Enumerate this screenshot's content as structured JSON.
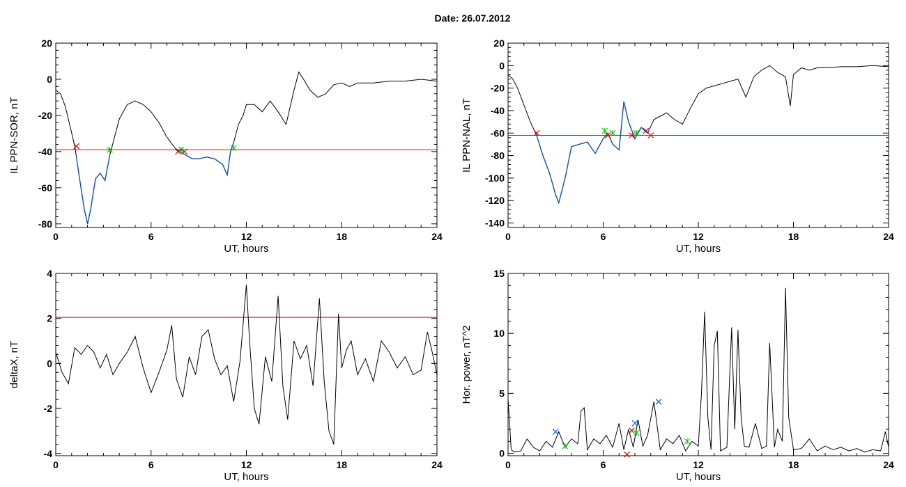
{
  "page": {
    "title": "Date:  26.07.2012"
  },
  "colors": {
    "line": "#000000",
    "storm_segment": "#1060c8",
    "threshold": "#e00000",
    "mark_start": "#e00000",
    "mark_end": "#00c000",
    "mark_peak": "#1060e0",
    "frame": "#000000"
  },
  "chart_data": [
    {
      "type": "line",
      "ylabel": "IL PPN-SOR, nT",
      "xlabel": "UT, hours",
      "xlim": [
        0,
        24
      ],
      "ylim": [
        -82,
        20
      ],
      "xticks": [
        0,
        6,
        12,
        18,
        24
      ],
      "xtick_labels": [
        "0",
        "6",
        "12",
        "18",
        "24"
      ],
      "yticks": [
        -80,
        -60,
        -40,
        -20,
        0,
        20
      ],
      "ytick_labels": [
        "-80",
        "-60",
        "-40",
        "-20",
        "0",
        "20"
      ],
      "threshold": -39,
      "x": [
        0,
        0.3,
        0.6,
        0.9,
        1.2,
        1.5,
        1.8,
        2.0,
        2.2,
        2.5,
        2.8,
        3.1,
        3.4,
        3.7,
        4.0,
        4.5,
        5.0,
        5.5,
        6.0,
        6.5,
        7.0,
        7.5,
        7.8,
        8.2,
        8.6,
        9.0,
        9.5,
        10.0,
        10.5,
        10.8,
        11.0,
        11.2,
        11.5,
        11.8,
        12.0,
        12.5,
        13.0,
        13.5,
        14.0,
        14.5,
        15.0,
        15.3,
        15.6,
        16.0,
        16.5,
        17.0,
        17.5,
        18.0,
        18.5,
        19.0,
        20.0,
        21.0,
        22.0,
        23.0,
        24.0
      ],
      "values": [
        -6,
        -8,
        -15,
        -26,
        -37,
        -55,
        -72,
        -80,
        -72,
        -55,
        -52,
        -56,
        -42,
        -32,
        -22,
        -14,
        -12,
        -14,
        -18,
        -24,
        -32,
        -38,
        -40,
        -42,
        -44,
        -44,
        -43,
        -44,
        -47,
        -53,
        -40,
        -35,
        -25,
        -20,
        -14,
        -14,
        -18,
        -12,
        -18,
        -25,
        -6,
        4,
        0,
        -6,
        -10,
        -8,
        -3,
        -2,
        -4,
        -2,
        -2,
        -1,
        -1,
        0,
        -1
      ],
      "storm_segments": [
        [
          1.3,
          3.4
        ],
        [
          7.7,
          11.2
        ]
      ],
      "markers": [
        {
          "x": 1.3,
          "y": -37,
          "kind": "start"
        },
        {
          "x": 3.4,
          "y": -39,
          "kind": "end"
        },
        {
          "x": 7.7,
          "y": -40,
          "kind": "start"
        },
        {
          "x": 7.9,
          "y": -39,
          "kind": "end"
        },
        {
          "x": 8.1,
          "y": -40,
          "kind": "start"
        },
        {
          "x": 11.2,
          "y": -38,
          "kind": "end"
        }
      ]
    },
    {
      "type": "line",
      "ylabel": "IL PPN-NAL, nT",
      "xlabel": "UT, hours",
      "xlim": [
        0,
        24
      ],
      "ylim": [
        -144,
        20
      ],
      "xticks": [
        0,
        6,
        12,
        18,
        24
      ],
      "xtick_labels": [
        "0",
        "6",
        "12",
        "18",
        "24"
      ],
      "yticks": [
        -140,
        -120,
        -100,
        -80,
        -60,
        -40,
        -20,
        0,
        20
      ],
      "ytick_labels": [
        "-140",
        "-120",
        "-100",
        "-80",
        "-60",
        "-40",
        "-20",
        "0",
        "20"
      ],
      "threshold": -62,
      "x": [
        0,
        0.3,
        0.6,
        1.0,
        1.4,
        1.8,
        2.2,
        2.6,
        3.0,
        3.2,
        3.6,
        4.0,
        4.5,
        5.0,
        5.5,
        6.0,
        6.3,
        6.6,
        7.0,
        7.3,
        7.6,
        8.0,
        8.4,
        8.8,
        9.2,
        9.6,
        10.0,
        10.5,
        11.0,
        11.5,
        12.0,
        12.5,
        13.0,
        13.5,
        14.0,
        14.5,
        15.0,
        15.5,
        16.0,
        16.5,
        17.0,
        17.5,
        17.8,
        18.0,
        18.5,
        19.0,
        19.5,
        20.0,
        21.0,
        22.0,
        23.0,
        24.0
      ],
      "values": [
        -8,
        -12,
        -20,
        -35,
        -50,
        -62,
        -80,
        -95,
        -115,
        -122,
        -100,
        -72,
        -70,
        -68,
        -78,
        -65,
        -60,
        -70,
        -75,
        -32,
        -50,
        -65,
        -55,
        -60,
        -48,
        -45,
        -42,
        -48,
        -52,
        -38,
        -25,
        -20,
        -18,
        -16,
        -14,
        -12,
        -28,
        -10,
        -4,
        0,
        -6,
        -10,
        -36,
        -8,
        -2,
        -4,
        -2,
        -2,
        -1,
        -1,
        0,
        -1
      ],
      "storm_segments": [
        [
          1.8,
          9.0
        ]
      ],
      "markers": [
        {
          "x": 1.8,
          "y": -60,
          "kind": "start"
        },
        {
          "x": 6.1,
          "y": -58,
          "kind": "end"
        },
        {
          "x": 6.3,
          "y": -62,
          "kind": "start"
        },
        {
          "x": 6.6,
          "y": -60,
          "kind": "end"
        },
        {
          "x": 7.8,
          "y": -62,
          "kind": "start"
        },
        {
          "x": 8.1,
          "y": -60,
          "kind": "end"
        },
        {
          "x": 8.7,
          "y": -58,
          "kind": "start"
        },
        {
          "x": 9.0,
          "y": -62,
          "kind": "start"
        }
      ]
    },
    {
      "type": "line",
      "ylabel": "deltaX, nT",
      "xlabel": "UT, hours",
      "xlim": [
        0,
        24
      ],
      "ylim": [
        -4.1,
        4.0
      ],
      "xticks": [
        0,
        6,
        12,
        18,
        24
      ],
      "xtick_labels": [
        "0",
        "6",
        "12",
        "18",
        "24"
      ],
      "yticks": [
        -4,
        -2,
        0,
        2,
        4
      ],
      "ytick_labels": [
        "-4",
        "-2",
        "0",
        "2",
        "4"
      ],
      "threshold": 2.05,
      "x": [
        0,
        0.4,
        0.8,
        1.2,
        1.6,
        2.0,
        2.4,
        2.8,
        3.2,
        3.6,
        4.0,
        4.5,
        5.0,
        5.5,
        6.0,
        6.5,
        7.0,
        7.3,
        7.6,
        8.0,
        8.4,
        8.8,
        9.2,
        9.6,
        10.0,
        10.4,
        10.8,
        11.2,
        11.6,
        12.0,
        12.2,
        12.5,
        12.8,
        13.2,
        13.6,
        14.0,
        14.3,
        14.6,
        15.0,
        15.4,
        15.8,
        16.2,
        16.6,
        16.9,
        17.2,
        17.5,
        17.8,
        18.0,
        18.3,
        18.6,
        19.0,
        19.5,
        20.0,
        20.5,
        21.0,
        21.5,
        22.0,
        22.5,
        23.0,
        23.4,
        23.7,
        24.0
      ],
      "values": [
        0.5,
        -0.4,
        -0.9,
        0.7,
        0.4,
        0.8,
        0.5,
        -0.2,
        0.4,
        -0.5,
        0,
        0.5,
        1.2,
        -0.2,
        -1.3,
        -0.4,
        0.6,
        1.7,
        -0.7,
        -1.5,
        0.3,
        -0.5,
        1.2,
        1.5,
        0.2,
        -0.5,
        -0.1,
        -1.7,
        0.1,
        3.5,
        1.0,
        -2.0,
        -2.7,
        0.3,
        -0.8,
        3.0,
        -1.0,
        -2.5,
        1.0,
        0.2,
        0.8,
        -1.0,
        2.9,
        -0.8,
        -3.0,
        -3.6,
        2.2,
        -0.2,
        0.6,
        1.0,
        -0.5,
        0.2,
        -0.8,
        1.0,
        0.5,
        -0.2,
        0.3,
        -0.5,
        -0.3,
        1.4,
        0.5,
        -0.5
      ]
    },
    {
      "type": "line",
      "ylabel": "Hor. power, nT^2",
      "xlabel": "UT, hours",
      "xlim": [
        0,
        24
      ],
      "ylim": [
        -0.2,
        15
      ],
      "xticks": [
        0,
        6,
        12,
        18,
        24
      ],
      "xtick_labels": [
        "0",
        "6",
        "12",
        "18",
        "24"
      ],
      "yticks": [
        0,
        5,
        10,
        15
      ],
      "ytick_labels": [
        "0",
        "5",
        "10",
        "15"
      ],
      "x": [
        0,
        0.2,
        0.4,
        0.8,
        1.2,
        1.6,
        2.0,
        2.4,
        2.8,
        3.2,
        3.6,
        4.0,
        4.4,
        4.6,
        4.8,
        5.0,
        5.4,
        5.8,
        6.2,
        6.6,
        7.0,
        7.3,
        7.6,
        7.9,
        8.2,
        8.5,
        8.8,
        9.2,
        9.6,
        10.0,
        10.4,
        10.8,
        11.2,
        11.6,
        12.0,
        12.2,
        12.4,
        12.6,
        12.8,
        13.0,
        13.2,
        13.4,
        13.8,
        14.1,
        14.3,
        14.5,
        14.7,
        14.9,
        15.2,
        15.6,
        16.0,
        16.3,
        16.5,
        16.8,
        17.0,
        17.3,
        17.5,
        17.7,
        18.0,
        18.5,
        19.0,
        19.5,
        20.0,
        20.5,
        21.0,
        21.5,
        22.0,
        22.5,
        23.0,
        23.5,
        23.8,
        24.0
      ],
      "values": [
        4.5,
        0.3,
        0.1,
        0.2,
        1.2,
        0.5,
        0.2,
        1.0,
        0.5,
        1.8,
        0.5,
        1.2,
        0.8,
        3.5,
        3.8,
        0.3,
        1.2,
        0.8,
        1.5,
        0.5,
        2.5,
        0.3,
        2.0,
        0.5,
        2.8,
        0.6,
        1.5,
        4.3,
        0.3,
        1.2,
        0.8,
        1.5,
        0.2,
        1.0,
        0.6,
        5.0,
        11.8,
        3.0,
        0.3,
        9.0,
        10.2,
        0.2,
        0.5,
        10.5,
        2.0,
        10.3,
        3.0,
        0.6,
        0.5,
        2.5,
        0.4,
        0.6,
        9.2,
        0.5,
        2.0,
        1.0,
        13.8,
        3.0,
        0.3,
        0.4,
        1.2,
        0.2,
        0.6,
        0.3,
        0.5,
        0.2,
        0.4,
        0.1,
        0.3,
        0.2,
        1.8,
        0.5
      ],
      "markers": [
        {
          "x": 3.0,
          "y": 1.8,
          "kind": "peak"
        },
        {
          "x": 3.6,
          "y": 0.6,
          "kind": "end"
        },
        {
          "x": 7.5,
          "y": -0.1,
          "kind": "start"
        },
        {
          "x": 7.8,
          "y": 1.9,
          "kind": "start"
        },
        {
          "x": 8.0,
          "y": 2.5,
          "kind": "peak"
        },
        {
          "x": 8.1,
          "y": 1.7,
          "kind": "end"
        },
        {
          "x": 9.5,
          "y": 4.3,
          "kind": "peak"
        },
        {
          "x": 11.3,
          "y": 1.0,
          "kind": "end"
        }
      ]
    }
  ]
}
